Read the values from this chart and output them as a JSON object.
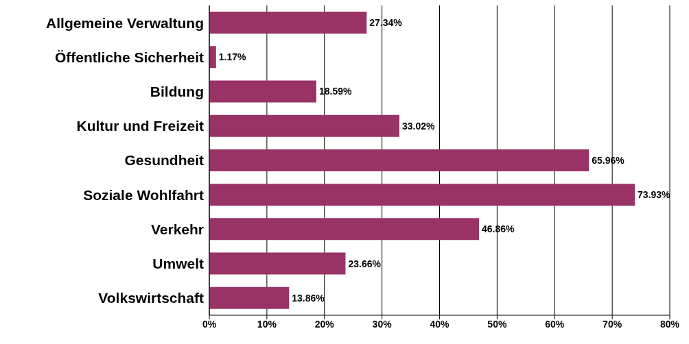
{
  "chart_data": {
    "type": "bar",
    "orientation": "horizontal",
    "categories": [
      "Allgemeine Verwaltung",
      "Öffentliche Sicherheit",
      "Bildung",
      "Kultur und Freizeit",
      "Gesundheit",
      "Soziale Wohlfahrt",
      "Verkehr",
      "Umwelt",
      "Volkswirtschaft"
    ],
    "values": [
      27.34,
      1.17,
      18.59,
      33.02,
      65.96,
      73.93,
      46.86,
      23.66,
      13.86
    ],
    "value_labels": [
      "27.34%",
      "1.17%",
      "18.59%",
      "33.02%",
      "65.96%",
      "73.93%",
      "46.86%",
      "23.66%",
      "13.86%"
    ],
    "color": "#993366",
    "xlim": [
      0,
      80
    ],
    "xticks": [
      {
        "value": 0,
        "label": "0%"
      },
      {
        "value": 10,
        "label": "10%"
      },
      {
        "value": 20,
        "label": "20%"
      },
      {
        "value": 30,
        "label": "30%"
      },
      {
        "value": 40,
        "label": "40%"
      },
      {
        "value": 50,
        "label": "50%"
      },
      {
        "value": 60,
        "label": "60%"
      },
      {
        "value": 70,
        "label": "70%"
      },
      {
        "value": 80,
        "label": "80%"
      }
    ],
    "grid": "x"
  }
}
